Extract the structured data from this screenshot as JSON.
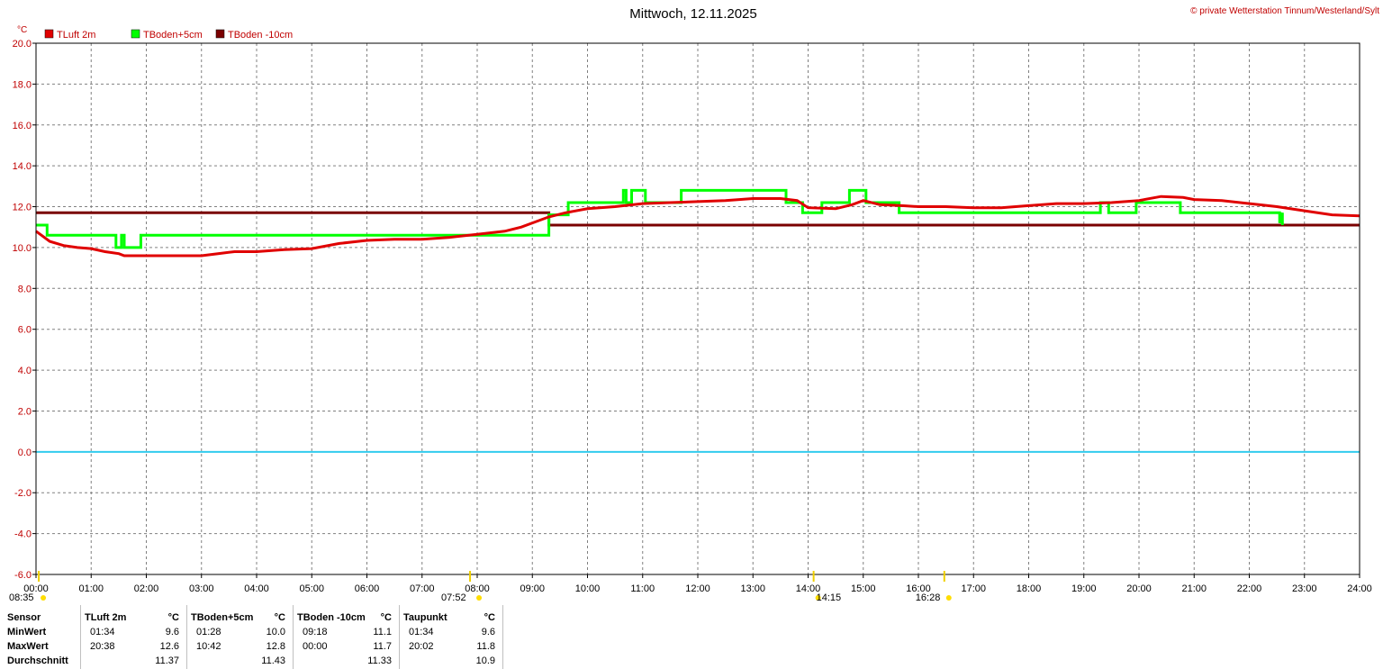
{
  "title": "Mittwoch, 12.11.2025",
  "copyright": "© private Wetterstation Tinnum/Westerland/Sylt",
  "chart_data": {
    "type": "line",
    "y_unit": "°C",
    "ylim": [
      -6,
      20
    ],
    "y_ticks": [
      "20.0",
      "18.0",
      "16.0",
      "14.0",
      "12.0",
      "10.0",
      "8.0",
      "6.0",
      "4.0",
      "2.0",
      "0.0",
      "-2.0",
      "-4.0",
      "-6.0"
    ],
    "xlim_hours": [
      0,
      24
    ],
    "x_ticks": [
      "00:00",
      "01:00",
      "02:00",
      "03:00",
      "04:00",
      "05:00",
      "06:00",
      "07:00",
      "08:00",
      "09:00",
      "10:00",
      "11:00",
      "12:00",
      "13:00",
      "14:00",
      "15:00",
      "16:00",
      "17:00",
      "18:00",
      "19:00",
      "20:00",
      "21:00",
      "22:00",
      "23:00",
      "24:00"
    ],
    "grid": true,
    "legend_position": "top-left",
    "zero_line_color": "#33ccee",
    "series": [
      {
        "name": "TLuft 2m",
        "color": "#e00000",
        "points": [
          [
            0,
            10.8
          ],
          [
            0.25,
            10.3
          ],
          [
            0.5,
            10.1
          ],
          [
            0.75,
            10.0
          ],
          [
            1.0,
            9.95
          ],
          [
            1.25,
            9.8
          ],
          [
            1.5,
            9.7
          ],
          [
            1.6,
            9.6
          ],
          [
            2.0,
            9.6
          ],
          [
            2.5,
            9.6
          ],
          [
            3.0,
            9.6
          ],
          [
            3.3,
            9.7
          ],
          [
            3.6,
            9.8
          ],
          [
            4.0,
            9.8
          ],
          [
            4.5,
            9.9
          ],
          [
            5.0,
            9.95
          ],
          [
            5.5,
            10.2
          ],
          [
            6.0,
            10.35
          ],
          [
            6.5,
            10.4
          ],
          [
            7.0,
            10.4
          ],
          [
            7.5,
            10.5
          ],
          [
            8.0,
            10.65
          ],
          [
            8.5,
            10.8
          ],
          [
            8.8,
            11.0
          ],
          [
            9.1,
            11.3
          ],
          [
            9.3,
            11.5
          ],
          [
            9.6,
            11.7
          ],
          [
            10.0,
            11.9
          ],
          [
            10.5,
            12.0
          ],
          [
            11.0,
            12.15
          ],
          [
            11.5,
            12.2
          ],
          [
            12.0,
            12.25
          ],
          [
            12.5,
            12.3
          ],
          [
            13.0,
            12.4
          ],
          [
            13.5,
            12.4
          ],
          [
            13.8,
            12.3
          ],
          [
            14.0,
            11.95
          ],
          [
            14.5,
            11.9
          ],
          [
            14.8,
            12.1
          ],
          [
            15.0,
            12.3
          ],
          [
            15.3,
            12.1
          ],
          [
            15.7,
            12.05
          ],
          [
            16.0,
            12.0
          ],
          [
            16.5,
            12.0
          ],
          [
            17.0,
            11.95
          ],
          [
            17.5,
            11.95
          ],
          [
            18.0,
            12.05
          ],
          [
            18.5,
            12.15
          ],
          [
            19.0,
            12.15
          ],
          [
            19.5,
            12.2
          ],
          [
            20.0,
            12.3
          ],
          [
            20.4,
            12.5
          ],
          [
            20.8,
            12.45
          ],
          [
            21.0,
            12.35
          ],
          [
            21.5,
            12.3
          ],
          [
            22.0,
            12.15
          ],
          [
            22.5,
            12.0
          ],
          [
            23.0,
            11.8
          ],
          [
            23.5,
            11.6
          ],
          [
            24.0,
            11.55
          ]
        ]
      },
      {
        "name": "TBoden+5cm",
        "color": "#00ff00",
        "points": [
          [
            0,
            11.1
          ],
          [
            0.2,
            11.1
          ],
          [
            0.2,
            10.6
          ],
          [
            1.45,
            10.6
          ],
          [
            1.45,
            10.0
          ],
          [
            1.55,
            10.0
          ],
          [
            1.55,
            10.6
          ],
          [
            1.6,
            10.6
          ],
          [
            1.6,
            10.0
          ],
          [
            1.9,
            10.0
          ],
          [
            1.9,
            10.6
          ],
          [
            9.3,
            10.6
          ],
          [
            9.3,
            11.6
          ],
          [
            9.65,
            11.6
          ],
          [
            9.65,
            12.2
          ],
          [
            10.65,
            12.2
          ],
          [
            10.65,
            12.8
          ],
          [
            10.7,
            12.8
          ],
          [
            10.7,
            12.2
          ],
          [
            10.8,
            12.2
          ],
          [
            10.8,
            12.8
          ],
          [
            11.05,
            12.8
          ],
          [
            11.05,
            12.2
          ],
          [
            11.7,
            12.2
          ],
          [
            11.7,
            12.8
          ],
          [
            13.6,
            12.8
          ],
          [
            13.6,
            12.2
          ],
          [
            13.9,
            12.2
          ],
          [
            13.9,
            11.7
          ],
          [
            14.25,
            11.7
          ],
          [
            14.25,
            12.2
          ],
          [
            14.75,
            12.2
          ],
          [
            14.75,
            12.8
          ],
          [
            15.05,
            12.8
          ],
          [
            15.05,
            12.2
          ],
          [
            15.65,
            12.2
          ],
          [
            15.65,
            11.7
          ],
          [
            19.3,
            11.7
          ],
          [
            19.3,
            12.2
          ],
          [
            19.45,
            12.2
          ],
          [
            19.45,
            11.7
          ],
          [
            19.95,
            11.7
          ],
          [
            19.95,
            12.2
          ],
          [
            20.75,
            12.2
          ],
          [
            20.75,
            11.7
          ],
          [
            22.55,
            11.7
          ],
          [
            22.55,
            11.2
          ],
          [
            22.6,
            11.7
          ],
          [
            22.6,
            11.1
          ]
        ]
      },
      {
        "name": "TBoden -10cm",
        "color": "#7a0000",
        "points": [
          [
            0,
            11.7
          ],
          [
            9.3,
            11.7
          ],
          [
            9.3,
            11.1
          ],
          [
            24.0,
            11.1
          ]
        ]
      }
    ],
    "sun_markers": [
      {
        "label": "08:35",
        "hour": 0.05
      },
      {
        "label": "07:52",
        "hour": 7.87
      },
      {
        "label": "14:15",
        "hour": 14.1
      },
      {
        "label": "16:28",
        "hour": 16.47
      }
    ]
  },
  "stats": {
    "sensor_header": "Sensor",
    "row_labels": [
      "MinWert",
      "MaxWert",
      "Durchschnitt"
    ],
    "columns": [
      {
        "name": "TLuft 2m",
        "unit": "°C",
        "rows": [
          [
            "01:34",
            "9.6"
          ],
          [
            "20:38",
            "12.6"
          ],
          [
            "",
            "11.37"
          ]
        ]
      },
      {
        "name": "TBoden+5cm",
        "unit": "°C",
        "rows": [
          [
            "01:28",
            "10.0"
          ],
          [
            "10:42",
            "12.8"
          ],
          [
            "",
            "11.43"
          ]
        ]
      },
      {
        "name": "TBoden -10cm",
        "unit": "°C",
        "rows": [
          [
            "09:18",
            "11.1"
          ],
          [
            "00:00",
            "11.7"
          ],
          [
            "",
            "11.33"
          ]
        ]
      },
      {
        "name": "Taupunkt",
        "unit": "°C",
        "rows": [
          [
            "01:34",
            "9.6"
          ],
          [
            "20:02",
            "11.8"
          ],
          [
            "",
            "10.9"
          ]
        ]
      }
    ]
  }
}
